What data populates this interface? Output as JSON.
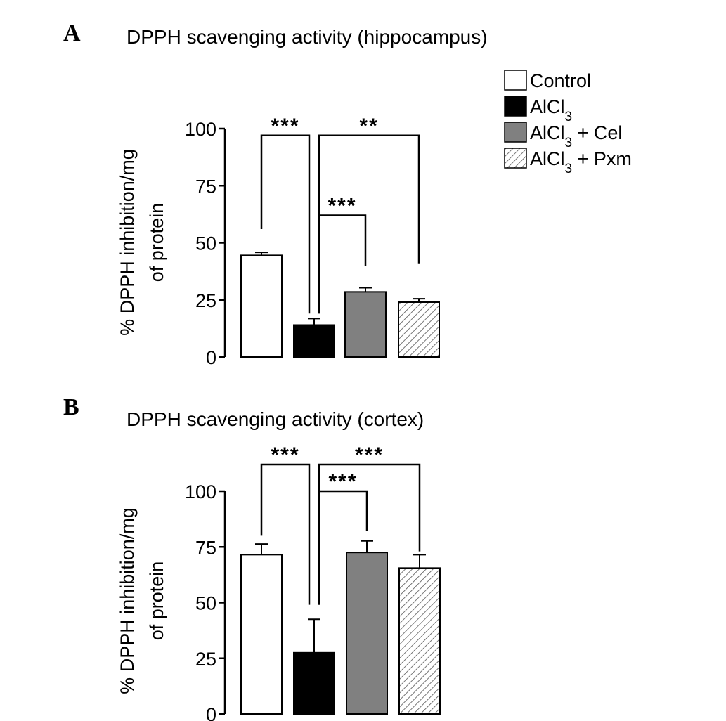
{
  "legend": [
    {
      "label": "Control",
      "sub": "",
      "suffix": "",
      "pattern": "white"
    },
    {
      "label": "AlCl",
      "sub": "3",
      "suffix": "",
      "pattern": "black"
    },
    {
      "label": "AlCl",
      "sub": "3",
      "suffix": " + Cel",
      "pattern": "gray"
    },
    {
      "label": "AlCl",
      "sub": "3",
      "suffix": " + Pxm",
      "pattern": "hatch"
    }
  ],
  "colors": {
    "control": "#ffffff",
    "alcl3": "#000000",
    "cel": "#808080",
    "pxm_hatch": "#555555",
    "axis": "#000000"
  },
  "chart_data": [
    {
      "type": "bar",
      "panel": "A",
      "title": "DPPH scavenging activity (hippocampus)",
      "ylabel_line1": "% DPPH inhibition/mg",
      "ylabel_line2": "of protein",
      "ylim": [
        0,
        100
      ],
      "yticks": [
        "0",
        "25",
        "50",
        "75",
        "100"
      ],
      "categories": [
        "Control",
        "AlCl3",
        "AlCl3 + Cel",
        "AlCl3 + Pxm"
      ],
      "values": [
        44.5,
        14,
        28.5,
        24
      ],
      "errors": [
        1.3,
        2.8,
        1.8,
        1.5
      ],
      "significance": [
        {
          "from": 0,
          "to": 1,
          "label": "***",
          "level": 97,
          "tail_from": 56,
          "tail_to": 19
        },
        {
          "from": 1,
          "to": 3,
          "label": "**",
          "level": 97,
          "tail_from": 19,
          "tail_to": 41
        },
        {
          "from": 1,
          "to": 2,
          "label": "***",
          "level": 62,
          "tail_from": 19,
          "tail_to": 40
        }
      ]
    },
    {
      "type": "bar",
      "panel": "B",
      "title": "DPPH scavenging activity (cortex)",
      "ylabel_line1": "% DPPH inhibition/mg",
      "ylabel_line2": "of protein",
      "ylim": [
        0,
        100
      ],
      "yticks": [
        "0",
        "25",
        "50",
        "75",
        "100"
      ],
      "categories": [
        "Control",
        "AlCl3",
        "AlCl3 + Cel",
        "AlCl3 + Pxm"
      ],
      "values": [
        71.5,
        27.5,
        72.5,
        65.5
      ],
      "errors": [
        4.8,
        15,
        5.2,
        6
      ],
      "significance": [
        {
          "from": 0,
          "to": 1,
          "label": "***",
          "level": 112,
          "tail_from": 80,
          "tail_to": 49
        },
        {
          "from": 1,
          "to": 3,
          "label": "***",
          "level": 112,
          "tail_from": 49,
          "tail_to": 73
        },
        {
          "from": 1,
          "to": 2,
          "label": "***",
          "level": 100,
          "tail_from": 49,
          "tail_to": 82
        }
      ]
    }
  ]
}
